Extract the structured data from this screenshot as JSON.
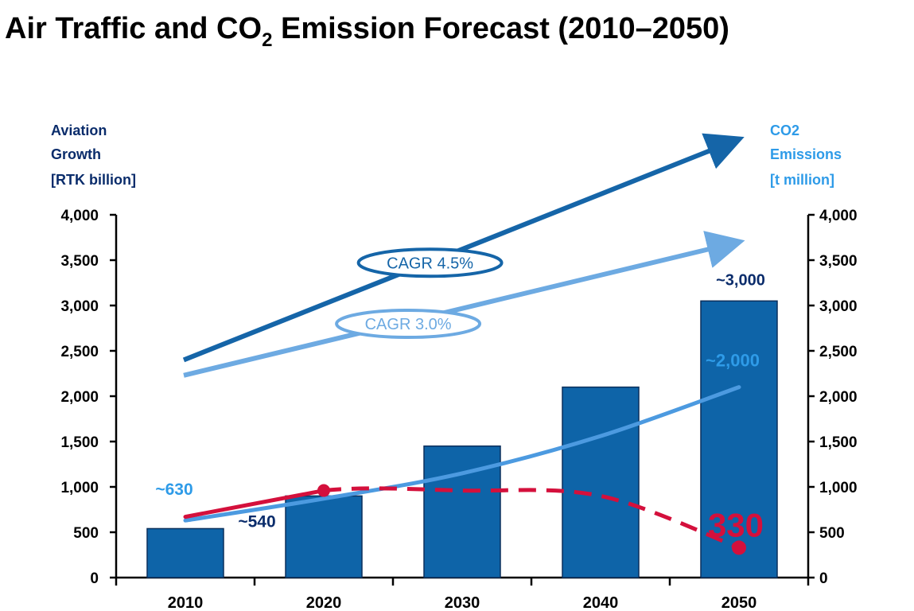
{
  "title": {
    "main": "Air Traffic and CO",
    "subscript": "2",
    "rest": " Emission Forecast (2010–2050)"
  },
  "colors": {
    "bar": "#0E64A8",
    "bar_edge": "#0A2F5C",
    "cagr_45": "#1565A8",
    "cagr_30": "#6DAAE2",
    "co2_line": "#4C9AE0",
    "reduction_line": "#D4103C",
    "dark_label": "#0A2C6B",
    "light_label": "#2E9BE8"
  },
  "chart_data": {
    "type": "bar",
    "title": "Air Traffic and CO2 Emission Forecast (2010–2050)",
    "categories": [
      "2010",
      "2020",
      "2030",
      "2040",
      "2050"
    ],
    "ylabel": "Aviation Growth [RTK billion]",
    "ylabel_lines": [
      "Aviation",
      "Growth",
      "[RTK billion]"
    ],
    "y2label": "CO2 Emissions [t million]",
    "y2label_lines": [
      "CO2",
      "Emissions",
      "[t million]"
    ],
    "ylim": [
      0,
      4000
    ],
    "y2lim": [
      0,
      4000
    ],
    "yticks": [
      "0",
      "500",
      "1,000",
      "1,500",
      "2,000",
      "2,500",
      "3,000",
      "3,500",
      "4,000"
    ],
    "y2ticks": [
      "0",
      "500",
      "1,000",
      "1,500",
      "2,000",
      "2,500",
      "3,000",
      "3,500",
      "4,000"
    ],
    "grid": false,
    "series": [
      {
        "type": "bar",
        "axis": "left",
        "values": [
          540,
          900,
          1450,
          2100,
          3050
        ]
      },
      {
        "type": "line",
        "axis": "right",
        "style": "solid",
        "values": [
          630,
          870,
          1150,
          1560,
          2100
        ]
      },
      {
        "type": "line",
        "axis": "right",
        "style": "solid-then-dashed",
        "values": [
          670,
          960,
          960,
          900,
          330
        ]
      }
    ],
    "trend_arrows": [
      {
        "label": "CAGR 4.5%",
        "x_start": 2010,
        "x_end": 2050,
        "y_start": 2400,
        "y_end": 4800
      },
      {
        "label": "CAGR 3.0%",
        "x_start": 2010,
        "x_end": 2050,
        "y_start": 2230,
        "y_end": 3680
      }
    ],
    "annotations": [
      {
        "text": "~630",
        "x": 2010,
        "y": 630,
        "color": "light"
      },
      {
        "text": "~540",
        "x": 2010,
        "y": 540,
        "color": "dark"
      },
      {
        "text": "~3,000",
        "x": 2050,
        "y": 3050,
        "color": "dark"
      },
      {
        "text": "~2,000",
        "x": 2050,
        "y": 2100,
        "color": "light"
      },
      {
        "text": "330",
        "x": 2050,
        "y": 330,
        "color": "red"
      }
    ]
  }
}
